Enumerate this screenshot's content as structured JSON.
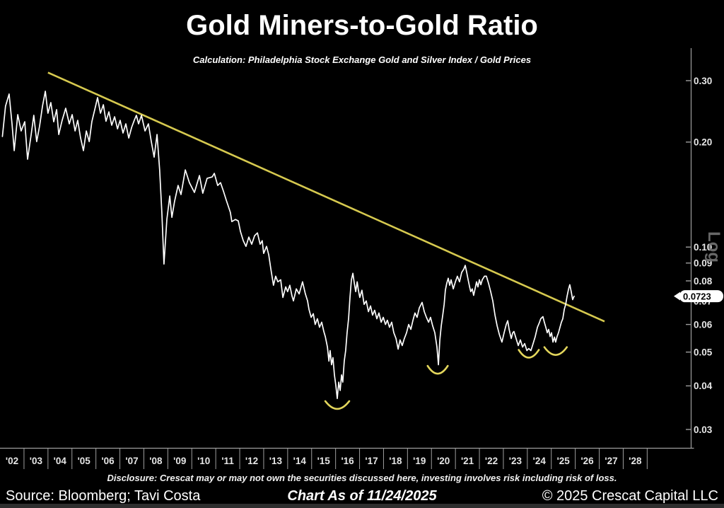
{
  "footer": {
    "disclosure": "Disclosure: Crescat may or may not own the securities discussed here, investing involves risk including risk of loss.",
    "source": "Source: Bloomberg; Tavi Costa",
    "as_of": "Chart As of 11/24/2025",
    "copyright": "© 2025 Crescat Capital LLC"
  },
  "chart_data": {
    "type": "line",
    "title": "Gold Miners-to-Gold Ratio",
    "subtitle": "Calculation: Philadelphia Stock Exchange Gold and Silver Index / Gold Prices",
    "scale": "log",
    "scale_label": "Log",
    "grid": false,
    "legend": false,
    "xlabel": "",
    "ylabel": "Gold Miners-to-Gold Ratio",
    "ylim": [
      0.028,
      0.33
    ],
    "x_range_years": [
      2001.5,
      2029.0
    ],
    "y_ticks": [
      0.3,
      0.2,
      0.1,
      0.09,
      0.08,
      0.07,
      0.06,
      0.05,
      0.04,
      0.03
    ],
    "y_tick_labels": [
      "0.30",
      "0.20",
      "0.10",
      "0.09",
      "0.08",
      "0.07",
      "0.06",
      "0.05",
      "0.04",
      "0.03"
    ],
    "x_tick_years": [
      2002,
      2003,
      2004,
      2005,
      2006,
      2007,
      2008,
      2009,
      2010,
      2011,
      2012,
      2013,
      2014,
      2015,
      2016,
      2017,
      2018,
      2019,
      2020,
      2021,
      2022,
      2023,
      2024,
      2025,
      2026,
      2027,
      2028
    ],
    "x_tick_labels": [
      "'02",
      "'03",
      "'04",
      "'05",
      "'06",
      "'07",
      "'08",
      "'09",
      "'10",
      "'11",
      "'12",
      "'13",
      "'14",
      "'15",
      "'16",
      "'17",
      "'18",
      "'19",
      "'20",
      "'21",
      "'22",
      "'23",
      "'24",
      "'25",
      "'26",
      "'27",
      "'28"
    ],
    "last_point": {
      "year": 2025.45,
      "value": 0.0723,
      "label": "0.0723"
    },
    "trendline": {
      "from": [
        2003.5,
        0.3165
      ],
      "to": [
        2026.72,
        0.0612
      ]
    },
    "bottom_arcs": [
      [
        2015.57,
        0.0355,
        0.5
      ],
      [
        2019.76,
        0.0448,
        0.42
      ],
      [
        2023.56,
        0.0498,
        0.42
      ],
      [
        2024.68,
        0.0507,
        0.47
      ]
    ],
    "colors": {
      "background": "#000000",
      "series": "#ffffff",
      "trendline": "#d6c94f",
      "arcs": "#e3d65c",
      "axis": "#9e9e9e",
      "tick_text": "#e6e6e6",
      "log_text": "#6e6e6e",
      "callout_bg": "#ffffff",
      "callout_text": "#000000"
    },
    "series": [
      {
        "name": "Gold Miners-to-Gold Ratio",
        "points": [
          [
            2001.6,
            0.2075
          ],
          [
            2001.73,
            0.2536
          ],
          [
            2001.88,
            0.2746
          ],
          [
            2002.0,
            0.2256
          ],
          [
            2002.09,
            0.189
          ],
          [
            2002.24,
            0.2397
          ],
          [
            2002.38,
            0.2152
          ],
          [
            2002.53,
            0.2287
          ],
          [
            2002.65,
            0.1786
          ],
          [
            2002.8,
            0.2103
          ],
          [
            2002.91,
            0.2386
          ],
          [
            2003.03,
            0.2007
          ],
          [
            2003.15,
            0.2224
          ],
          [
            2003.27,
            0.2536
          ],
          [
            2003.39,
            0.2797
          ],
          [
            2003.5,
            0.242
          ],
          [
            2003.62,
            0.2596
          ],
          [
            2003.74,
            0.2287
          ],
          [
            2003.86,
            0.2477
          ],
          [
            2003.95,
            0.2103
          ],
          [
            2004.09,
            0.2309
          ],
          [
            2004.24,
            0.25
          ],
          [
            2004.39,
            0.2256
          ],
          [
            2004.51,
            0.2397
          ],
          [
            2004.63,
            0.2152
          ],
          [
            2004.74,
            0.2309
          ],
          [
            2004.86,
            0.2054
          ],
          [
            2004.98,
            0.189
          ],
          [
            2005.1,
            0.2152
          ],
          [
            2005.22,
            0.2007
          ],
          [
            2005.33,
            0.2287
          ],
          [
            2005.45,
            0.2477
          ],
          [
            2005.57,
            0.2682
          ],
          [
            2005.69,
            0.242
          ],
          [
            2005.81,
            0.2559
          ],
          [
            2005.92,
            0.2295
          ],
          [
            2006.04,
            0.2442
          ],
          [
            2006.16,
            0.2235
          ],
          [
            2006.28,
            0.2364
          ],
          [
            2006.4,
            0.2183
          ],
          [
            2006.51,
            0.2309
          ],
          [
            2006.63,
            0.2123
          ],
          [
            2006.75,
            0.2256
          ],
          [
            2006.87,
            0.2054
          ],
          [
            2006.99,
            0.2204
          ],
          [
            2007.1,
            0.2309
          ],
          [
            2007.19,
            0.2386
          ],
          [
            2007.28,
            0.2256
          ],
          [
            2007.4,
            0.2386
          ],
          [
            2007.55,
            0.2152
          ],
          [
            2007.69,
            0.2256
          ],
          [
            2007.81,
            0.2007
          ],
          [
            2007.93,
            0.1811
          ],
          [
            2008.05,
            0.2103
          ],
          [
            2008.16,
            0.1665
          ],
          [
            2008.25,
            0.1258
          ],
          [
            2008.34,
            0.0894
          ],
          [
            2008.46,
            0.12
          ],
          [
            2008.58,
            0.1401
          ],
          [
            2008.67,
            0.1217
          ],
          [
            2008.78,
            0.1349
          ],
          [
            2008.93,
            0.1502
          ],
          [
            2009.05,
            0.1414
          ],
          [
            2009.23,
            0.1665
          ],
          [
            2009.4,
            0.153
          ],
          [
            2009.61,
            0.1434
          ],
          [
            2009.82,
            0.1604
          ],
          [
            2009.96,
            0.1427
          ],
          [
            2010.14,
            0.1574
          ],
          [
            2010.35,
            0.1589
          ],
          [
            2010.44,
            0.1627
          ],
          [
            2010.58,
            0.1502
          ],
          [
            2010.7,
            0.153
          ],
          [
            2010.82,
            0.1447
          ],
          [
            2010.94,
            0.1362
          ],
          [
            2011.11,
            0.1258
          ],
          [
            2011.17,
            0.1183
          ],
          [
            2011.32,
            0.12
          ],
          [
            2011.44,
            0.1189
          ],
          [
            2011.53,
            0.1108
          ],
          [
            2011.65,
            0.1043
          ],
          [
            2011.76,
            0.1005
          ],
          [
            2011.88,
            0.1068
          ],
          [
            2012.0,
            0.1019
          ],
          [
            2012.12,
            0.1078
          ],
          [
            2012.24,
            0.1098
          ],
          [
            2012.35,
            0.1019
          ],
          [
            2012.44,
            0.1043
          ],
          [
            2012.5,
            0.0959
          ],
          [
            2012.62,
            0.1005
          ],
          [
            2012.71,
            0.095
          ],
          [
            2012.8,
            0.0865
          ],
          [
            2012.91,
            0.0777
          ],
          [
            2013.0,
            0.0825
          ],
          [
            2013.09,
            0.0795
          ],
          [
            2013.21,
            0.0806
          ],
          [
            2013.3,
            0.0717
          ],
          [
            2013.42,
            0.0769
          ],
          [
            2013.5,
            0.0745
          ],
          [
            2013.59,
            0.0777
          ],
          [
            2013.68,
            0.0724
          ],
          [
            2013.74,
            0.0701
          ],
          [
            2013.86,
            0.0759
          ],
          [
            2013.98,
            0.0734
          ],
          [
            2014.12,
            0.0795
          ],
          [
            2014.24,
            0.0734
          ],
          [
            2014.33,
            0.0701
          ],
          [
            2014.39,
            0.0663
          ],
          [
            2014.48,
            0.0629
          ],
          [
            2014.57,
            0.0644
          ],
          [
            2014.65,
            0.06
          ],
          [
            2014.74,
            0.0623
          ],
          [
            2014.83,
            0.0589
          ],
          [
            2014.92,
            0.0609
          ],
          [
            2015.01,
            0.0573
          ],
          [
            2015.07,
            0.0554
          ],
          [
            2015.16,
            0.0517
          ],
          [
            2015.22,
            0.0471
          ],
          [
            2015.27,
            0.0505
          ],
          [
            2015.33,
            0.046
          ],
          [
            2015.39,
            0.0482
          ],
          [
            2015.45,
            0.043
          ],
          [
            2015.51,
            0.0401
          ],
          [
            2015.57,
            0.0368
          ],
          [
            2015.63,
            0.041
          ],
          [
            2015.69,
            0.0388
          ],
          [
            2015.75,
            0.043
          ],
          [
            2015.8,
            0.041
          ],
          [
            2015.86,
            0.0471
          ],
          [
            2015.92,
            0.0505
          ],
          [
            2015.98,
            0.0568
          ],
          [
            2016.04,
            0.0623
          ],
          [
            2016.1,
            0.0717
          ],
          [
            2016.16,
            0.0806
          ],
          [
            2016.22,
            0.0841
          ],
          [
            2016.28,
            0.0788
          ],
          [
            2016.34,
            0.0745
          ],
          [
            2016.4,
            0.0795
          ],
          [
            2016.45,
            0.0752
          ],
          [
            2016.51,
            0.0717
          ],
          [
            2016.6,
            0.0752
          ],
          [
            2016.69,
            0.0685
          ],
          [
            2016.78,
            0.0701
          ],
          [
            2016.87,
            0.0653
          ],
          [
            2016.96,
            0.0678
          ],
          [
            2017.04,
            0.0638
          ],
          [
            2017.13,
            0.0659
          ],
          [
            2017.22,
            0.0623
          ],
          [
            2017.31,
            0.0647
          ],
          [
            2017.4,
            0.0609
          ],
          [
            2017.49,
            0.0629
          ],
          [
            2017.58,
            0.06
          ],
          [
            2017.66,
            0.0617
          ],
          [
            2017.75,
            0.0589
          ],
          [
            2017.84,
            0.0609
          ],
          [
            2017.93,
            0.0568
          ],
          [
            2018.02,
            0.0547
          ],
          [
            2018.11,
            0.051
          ],
          [
            2018.19,
            0.0542
          ],
          [
            2018.28,
            0.0522
          ],
          [
            2018.37,
            0.0547
          ],
          [
            2018.46,
            0.0568
          ],
          [
            2018.55,
            0.06
          ],
          [
            2018.64,
            0.0581
          ],
          [
            2018.73,
            0.0617
          ],
          [
            2018.81,
            0.0647
          ],
          [
            2018.9,
            0.0629
          ],
          [
            2018.99,
            0.0669
          ],
          [
            2019.11,
            0.0694
          ],
          [
            2019.2,
            0.0653
          ],
          [
            2019.29,
            0.0629
          ],
          [
            2019.38,
            0.0609
          ],
          [
            2019.46,
            0.0629
          ],
          [
            2019.55,
            0.0595
          ],
          [
            2019.64,
            0.0568
          ],
          [
            2019.73,
            0.0517
          ],
          [
            2019.79,
            0.046
          ],
          [
            2019.85,
            0.0542
          ],
          [
            2019.91,
            0.0595
          ],
          [
            2019.97,
            0.0638
          ],
          [
            2020.03,
            0.0685
          ],
          [
            2020.08,
            0.0752
          ],
          [
            2020.14,
            0.0788
          ],
          [
            2020.2,
            0.0814
          ],
          [
            2020.26,
            0.0777
          ],
          [
            2020.32,
            0.0806
          ],
          [
            2020.41,
            0.0759
          ],
          [
            2020.5,
            0.0795
          ],
          [
            2020.58,
            0.0825
          ],
          [
            2020.67,
            0.0795
          ],
          [
            2020.76,
            0.0846
          ],
          [
            2020.85,
            0.0865
          ],
          [
            2020.91,
            0.0886
          ],
          [
            2020.97,
            0.0846
          ],
          [
            2021.03,
            0.0806
          ],
          [
            2021.09,
            0.0769
          ],
          [
            2021.14,
            0.0745
          ],
          [
            2021.2,
            0.0759
          ],
          [
            2021.26,
            0.0727
          ],
          [
            2021.32,
            0.0759
          ],
          [
            2021.38,
            0.0795
          ],
          [
            2021.44,
            0.0769
          ],
          [
            2021.5,
            0.0806
          ],
          [
            2021.56,
            0.078
          ],
          [
            2021.62,
            0.0806
          ],
          [
            2021.71,
            0.0825
          ],
          [
            2021.79,
            0.0825
          ],
          [
            2021.88,
            0.0788
          ],
          [
            2021.97,
            0.0745
          ],
          [
            2022.06,
            0.0701
          ],
          [
            2022.15,
            0.0638
          ],
          [
            2022.24,
            0.0595
          ],
          [
            2022.33,
            0.0562
          ],
          [
            2022.44,
            0.0534
          ],
          [
            2022.53,
            0.0568
          ],
          [
            2022.62,
            0.06
          ],
          [
            2022.68,
            0.0615
          ],
          [
            2022.74,
            0.0581
          ],
          [
            2022.83,
            0.0547
          ],
          [
            2022.89,
            0.0568
          ],
          [
            2022.94,
            0.0573
          ],
          [
            2023.03,
            0.0547
          ],
          [
            2023.12,
            0.0522
          ],
          [
            2023.21,
            0.0542
          ],
          [
            2023.3,
            0.0517
          ],
          [
            2023.39,
            0.0529
          ],
          [
            2023.48,
            0.0505
          ],
          [
            2023.56,
            0.0512
          ],
          [
            2023.65,
            0.0505
          ],
          [
            2023.74,
            0.0529
          ],
          [
            2023.83,
            0.0554
          ],
          [
            2023.92,
            0.0589
          ],
          [
            2024.01,
            0.0609
          ],
          [
            2024.06,
            0.0623
          ],
          [
            2024.15,
            0.0632
          ],
          [
            2024.21,
            0.0609
          ],
          [
            2024.27,
            0.0589
          ],
          [
            2024.33,
            0.0568
          ],
          [
            2024.39,
            0.0581
          ],
          [
            2024.45,
            0.0554
          ],
          [
            2024.51,
            0.0568
          ],
          [
            2024.57,
            0.0534
          ],
          [
            2024.63,
            0.0552
          ],
          [
            2024.68,
            0.0534
          ],
          [
            2024.74,
            0.0554
          ],
          [
            2024.8,
            0.0568
          ],
          [
            2024.86,
            0.0589
          ],
          [
            2024.92,
            0.0609
          ],
          [
            2024.98,
            0.0623
          ],
          [
            2025.04,
            0.0663
          ],
          [
            2025.1,
            0.0685
          ],
          [
            2025.16,
            0.0724
          ],
          [
            2025.22,
            0.0759
          ],
          [
            2025.27,
            0.078
          ],
          [
            2025.33,
            0.0745
          ],
          [
            2025.39,
            0.0707
          ],
          [
            2025.45,
            0.0723
          ]
        ]
      }
    ]
  }
}
